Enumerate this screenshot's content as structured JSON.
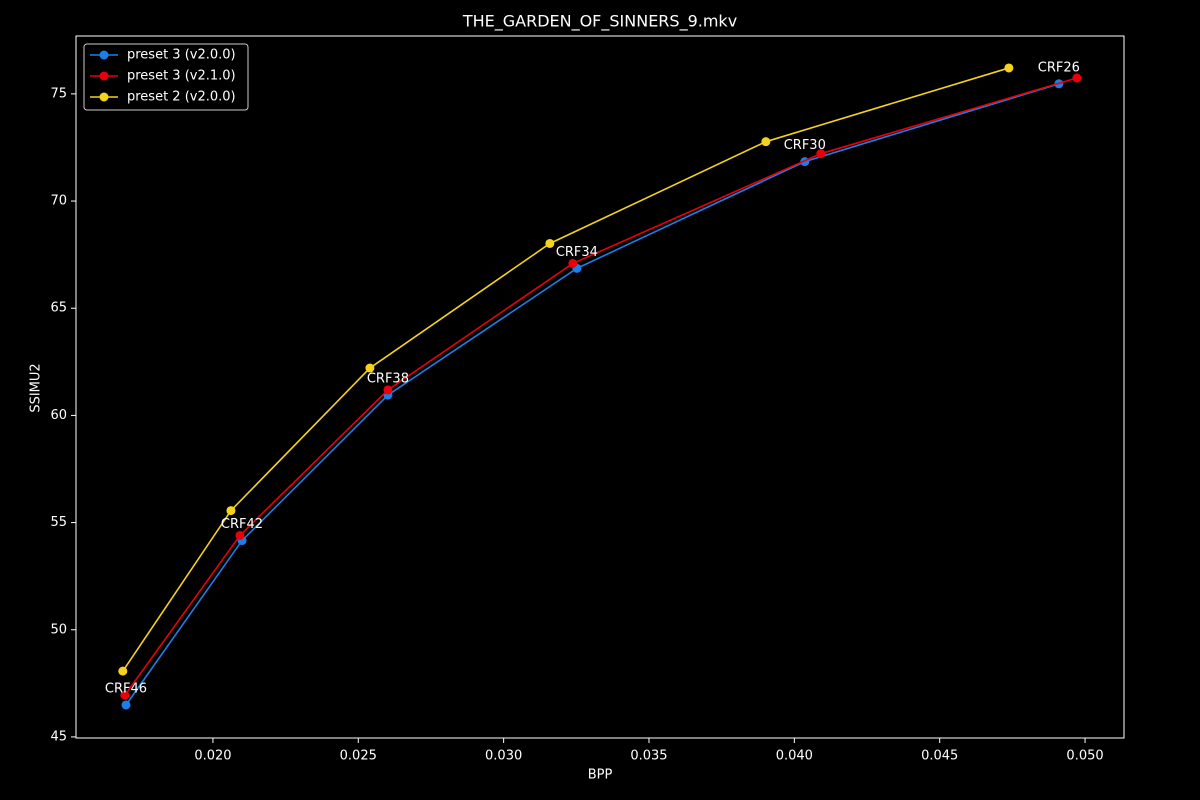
{
  "chart_data": {
    "type": "line",
    "title": "THE_GARDEN_OF_SINNERS_9.mkv",
    "x_label": "BPP",
    "y_label": "SSIMU2",
    "xlim": [
      0.01529,
      0.05134
    ],
    "ylim": [
      44.95,
      77.7
    ],
    "xticks": [
      {
        "value": 0.02,
        "label": "0.020"
      },
      {
        "value": 0.025,
        "label": "0.025"
      },
      {
        "value": 0.03,
        "label": "0.030"
      },
      {
        "value": 0.035,
        "label": "0.035"
      },
      {
        "value": 0.04,
        "label": "0.040"
      },
      {
        "value": 0.045,
        "label": "0.045"
      },
      {
        "value": 0.05,
        "label": "0.050"
      }
    ],
    "yticks": [
      45,
      50,
      55,
      60,
      65,
      70,
      75
    ],
    "legend": "upper-left",
    "series": [
      {
        "name": "preset 3 (v2.0.0)",
        "color": "#1a7fe8",
        "x": [
          0.01701,
          0.021,
          0.02602,
          0.03252,
          0.04036,
          0.0491
        ],
        "values": [
          46.49,
          54.16,
          60.95,
          66.86,
          71.84,
          75.47
        ]
      },
      {
        "name": "preset 3 (v2.1.0)",
        "color": "#e8000b",
        "x": [
          0.01697,
          0.02093,
          0.02602,
          0.03238,
          0.04091,
          0.04972
        ],
        "values": [
          46.95,
          54.4,
          61.19,
          67.09,
          72.21,
          75.74
        ]
      },
      {
        "name": "preset 2 (v2.0.0)",
        "color": "#f5d21b",
        "x": [
          0.0169,
          0.02062,
          0.0254,
          0.03159,
          0.03902,
          0.04738
        ],
        "values": [
          48.07,
          55.56,
          62.21,
          68.02,
          72.77,
          76.21
        ]
      }
    ],
    "annotations": [
      "CRF46",
      "CRF42",
      "CRF38",
      "CRF34",
      "CRF30",
      "CRF26"
    ]
  }
}
